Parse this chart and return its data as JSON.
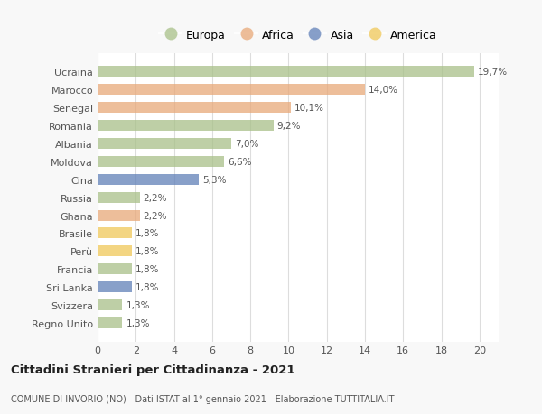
{
  "countries": [
    "Ucraina",
    "Marocco",
    "Senegal",
    "Romania",
    "Albania",
    "Moldova",
    "Cina",
    "Russia",
    "Ghana",
    "Brasile",
    "Perù",
    "Francia",
    "Sri Lanka",
    "Svizzera",
    "Regno Unito"
  ],
  "values": [
    19.7,
    14.0,
    10.1,
    9.2,
    7.0,
    6.6,
    5.3,
    2.2,
    2.2,
    1.8,
    1.8,
    1.8,
    1.8,
    1.3,
    1.3
  ],
  "labels": [
    "19,7%",
    "14,0%",
    "10,1%",
    "9,2%",
    "7,0%",
    "6,6%",
    "5,3%",
    "2,2%",
    "2,2%",
    "1,8%",
    "1,8%",
    "1,8%",
    "1,8%",
    "1,3%",
    "1,3%"
  ],
  "continents": [
    "Europa",
    "Africa",
    "Africa",
    "Europa",
    "Europa",
    "Europa",
    "Asia",
    "Europa",
    "Africa",
    "America",
    "America",
    "Europa",
    "Asia",
    "Europa",
    "Europa"
  ],
  "colors": {
    "Europa": "#a8c088",
    "Africa": "#e8a878",
    "Asia": "#6080b8",
    "America": "#f0c858"
  },
  "legend_order": [
    "Europa",
    "Africa",
    "Asia",
    "America"
  ],
  "xlim": [
    0,
    21
  ],
  "xticks": [
    0,
    2,
    4,
    6,
    8,
    10,
    12,
    14,
    16,
    18,
    20
  ],
  "title": "Cittadini Stranieri per Cittadinanza - 2021",
  "subtitle": "COMUNE DI INVORIO (NO) - Dati ISTAT al 1° gennaio 2021 - Elaborazione TUTTITALIA.IT",
  "background_color": "#f8f8f8",
  "bar_background": "#ffffff",
  "grid_color": "#dddddd",
  "bar_height": 0.6,
  "bar_alpha": 0.75
}
